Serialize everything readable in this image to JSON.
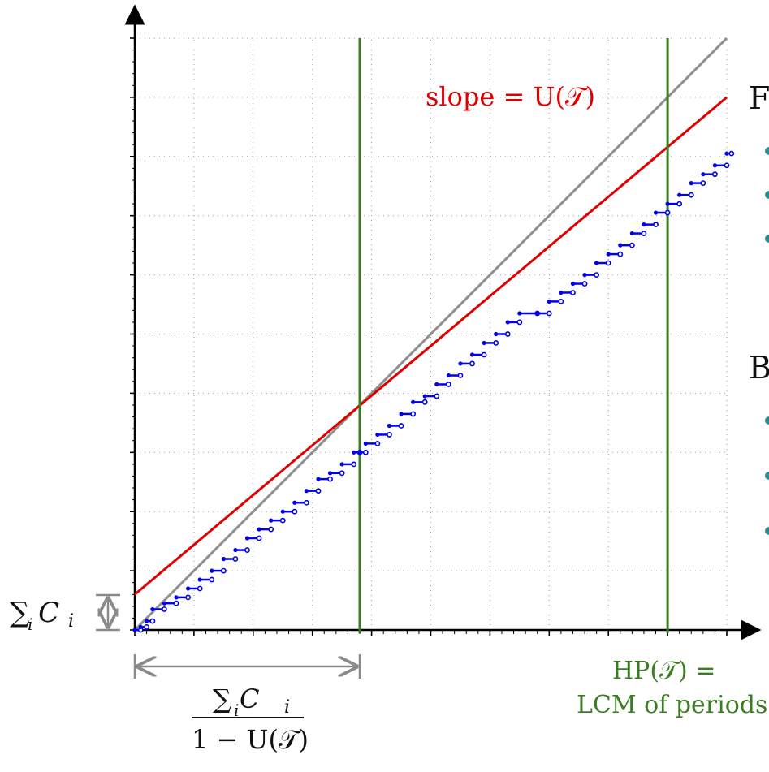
{
  "annotations": {
    "slope_label": "slope = U(𝒯)",
    "sum_c_label_left": "∑ C",
    "sum_c_sub_left": "i",
    "sum_c_i_left": "i",
    "fraction_numerator": "∑ C",
    "fraction_numerator_sub": "i",
    "fraction_numerator_i": "i",
    "fraction_denominator": "1 − U(𝒯)",
    "hp_label_line1": "HP(𝒯) =",
    "hp_label_line2": "LCM of periods",
    "side_letter_1": "F",
    "side_letter_2": "B"
  },
  "colors": {
    "red_line": "#e00000",
    "gray_line": "#8f8f8f",
    "green_line": "#3a7d22",
    "blue_steps": "#0000ee",
    "axis": "#000000",
    "grid": "#9a9a9a",
    "teal_bullets": "#2a8a8a"
  },
  "chart_data": {
    "type": "line",
    "xlim": [
      0,
      10
    ],
    "ylim": [
      0,
      10
    ],
    "grid": true,
    "series": [
      {
        "kind": "identity",
        "points": [
          [
            0,
            0
          ],
          [
            10,
            10
          ]
        ]
      },
      {
        "kind": "utilization",
        "points": [
          [
            0,
            0.6
          ],
          [
            10,
            9
          ]
        ]
      },
      {
        "kind": "vertical",
        "x": 3.8
      },
      {
        "kind": "vertical",
        "x": 9.0
      },
      {
        "kind": "demand-steps",
        "points": [
          [
            0.0,
            0.0
          ],
          [
            0.1,
            0.05
          ],
          [
            0.2,
            0.15
          ],
          [
            0.3,
            0.35
          ],
          [
            0.5,
            0.45
          ],
          [
            0.7,
            0.55
          ],
          [
            0.9,
            0.7
          ],
          [
            1.1,
            0.85
          ],
          [
            1.3,
            1.0
          ],
          [
            1.5,
            1.2
          ],
          [
            1.7,
            1.35
          ],
          [
            1.9,
            1.55
          ],
          [
            2.1,
            1.7
          ],
          [
            2.3,
            1.85
          ],
          [
            2.5,
            2.0
          ],
          [
            2.7,
            2.15
          ],
          [
            2.9,
            2.35
          ],
          [
            3.1,
            2.55
          ],
          [
            3.3,
            2.65
          ],
          [
            3.5,
            2.8
          ],
          [
            3.7,
            3.0
          ],
          [
            3.8,
            3.0
          ],
          [
            3.9,
            3.15
          ],
          [
            4.1,
            3.3
          ],
          [
            4.3,
            3.45
          ],
          [
            4.5,
            3.65
          ],
          [
            4.7,
            3.85
          ],
          [
            4.9,
            3.95
          ],
          [
            5.1,
            4.15
          ],
          [
            5.3,
            4.3
          ],
          [
            5.5,
            4.5
          ],
          [
            5.7,
            4.65
          ],
          [
            5.9,
            4.85
          ],
          [
            6.1,
            5.0
          ],
          [
            6.3,
            5.2
          ],
          [
            6.5,
            5.35
          ],
          [
            6.8,
            5.35
          ],
          [
            7.0,
            5.55
          ],
          [
            7.2,
            5.7
          ],
          [
            7.4,
            5.85
          ],
          [
            7.6,
            6.0
          ],
          [
            7.8,
            6.2
          ],
          [
            8.0,
            6.35
          ],
          [
            8.2,
            6.5
          ],
          [
            8.4,
            6.7
          ],
          [
            8.6,
            6.85
          ],
          [
            8.8,
            7.05
          ],
          [
            9.0,
            7.2
          ],
          [
            9.2,
            7.35
          ],
          [
            9.4,
            7.55
          ],
          [
            9.6,
            7.7
          ],
          [
            9.8,
            7.85
          ],
          [
            10.0,
            8.05
          ]
        ]
      }
    ]
  }
}
